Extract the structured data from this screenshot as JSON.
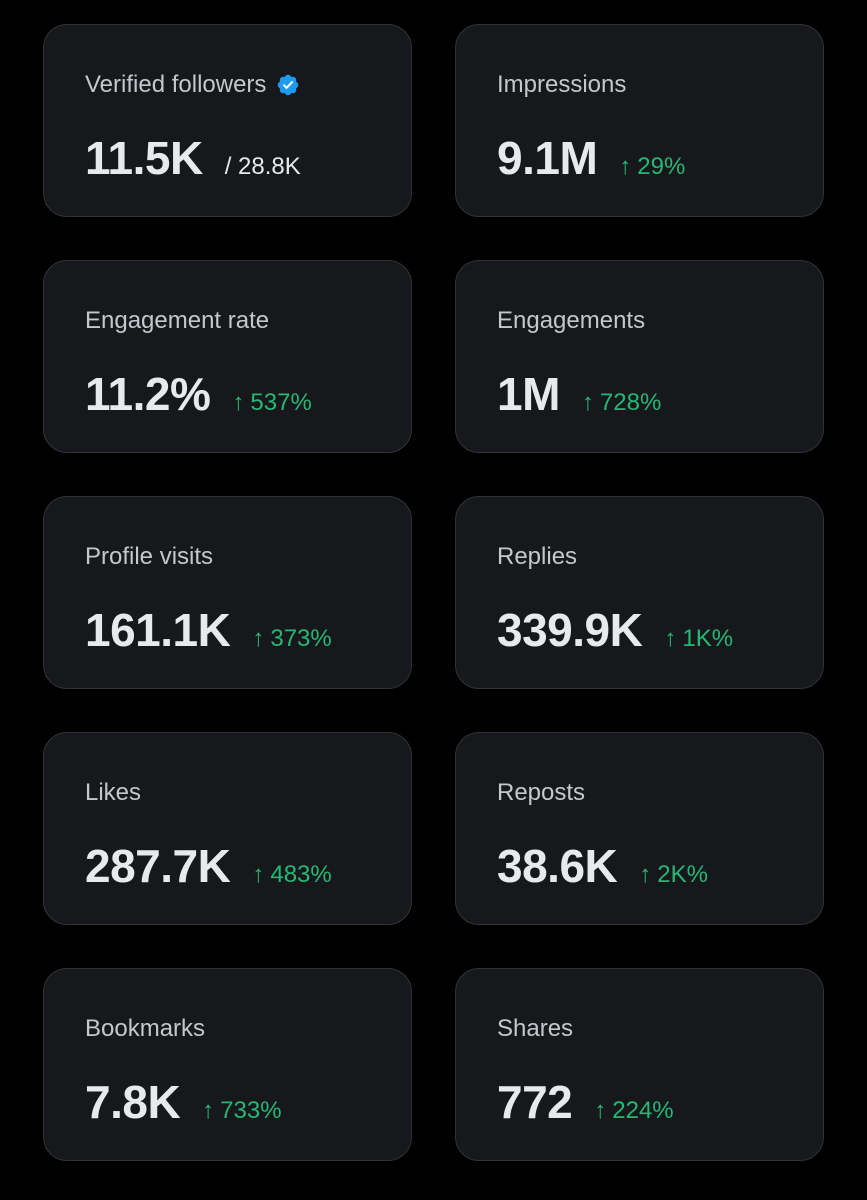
{
  "colors": {
    "background": "#000000",
    "card": "#16181c",
    "card_border": "#2f3336",
    "label": "#c4c7cb",
    "value": "#e7e9ea",
    "positive": "#26b874",
    "verified": "#1d9bf0"
  },
  "stats": [
    {
      "label": "Verified followers",
      "value": "11.5K",
      "total": "/ 28.8K",
      "icon": "verified-badge-icon"
    },
    {
      "label": "Impressions",
      "value": "9.1M",
      "change": "29%",
      "trend": "up"
    },
    {
      "label": "Engagement rate",
      "value": "11.2%",
      "change": "537%",
      "trend": "up"
    },
    {
      "label": "Engagements",
      "value": "1M",
      "change": "728%",
      "trend": "up"
    },
    {
      "label": "Profile visits",
      "value": "161.1K",
      "change": "373%",
      "trend": "up"
    },
    {
      "label": "Replies",
      "value": "339.9K",
      "change": "1K%",
      "trend": "up"
    },
    {
      "label": "Likes",
      "value": "287.7K",
      "change": "483%",
      "trend": "up"
    },
    {
      "label": "Reposts",
      "value": "38.6K",
      "change": "2K%",
      "trend": "up"
    },
    {
      "label": "Bookmarks",
      "value": "7.8K",
      "change": "733%",
      "trend": "up"
    },
    {
      "label": "Shares",
      "value": "772",
      "change": "224%",
      "trend": "up"
    }
  ]
}
